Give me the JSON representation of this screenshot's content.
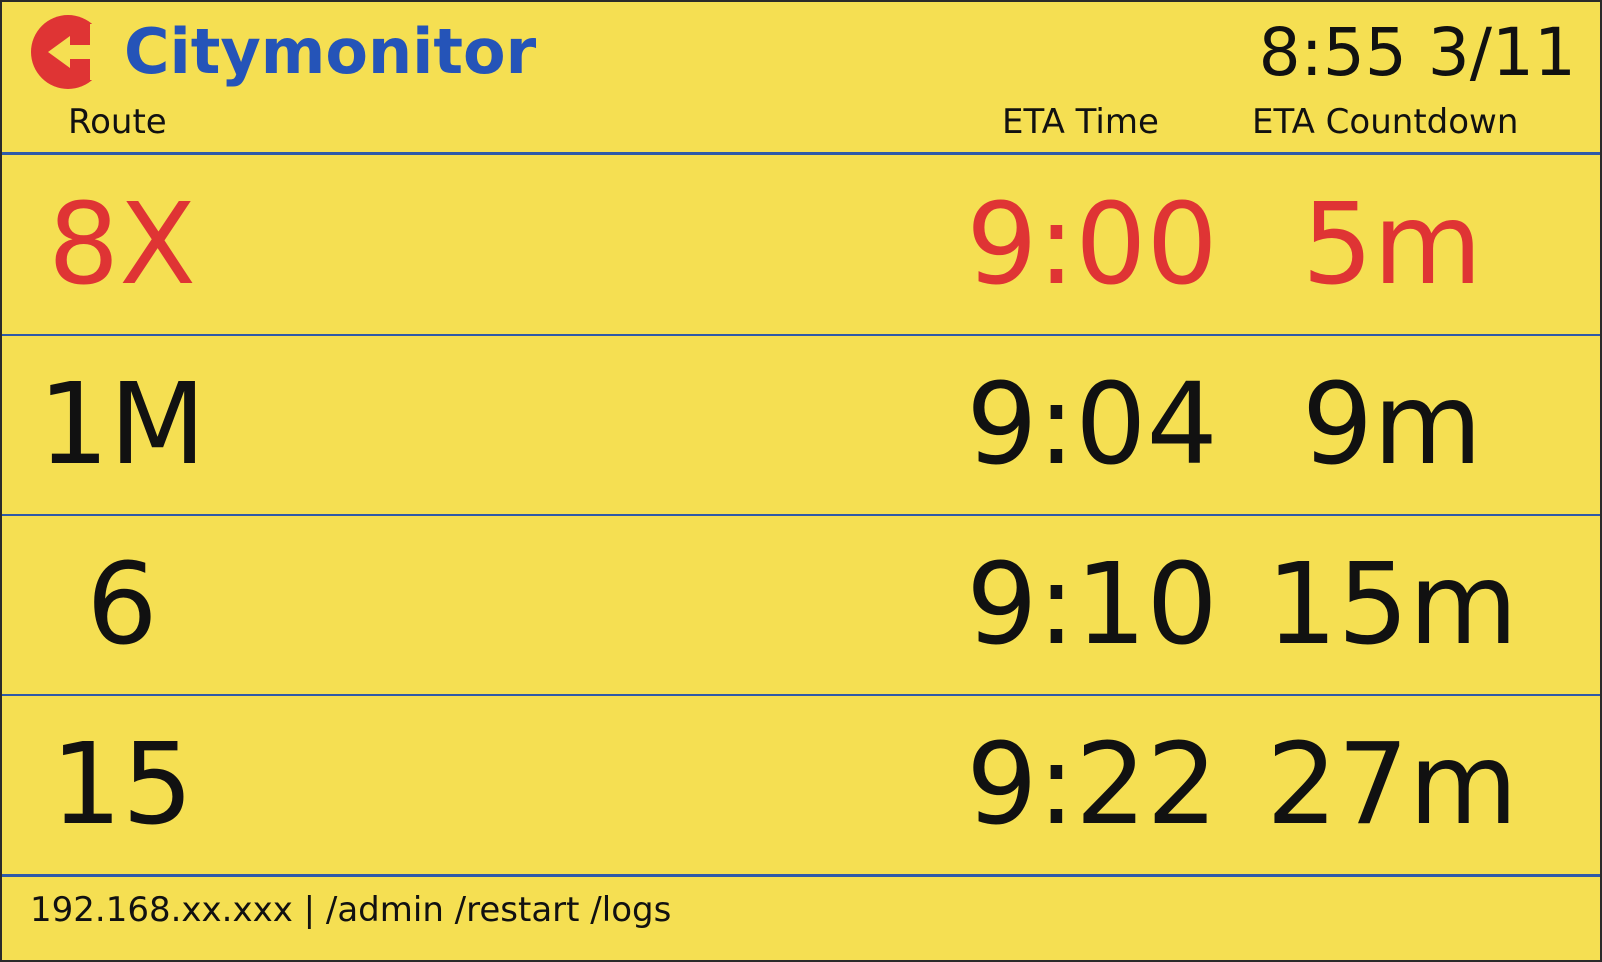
{
  "app": {
    "brand": "Citymonitor",
    "clock": "8:55 3/11"
  },
  "columns": {
    "route": "Route",
    "eta_time": "ETA Time",
    "eta_countdown": "ETA Countdown"
  },
  "arrivals": [
    {
      "route": "8X",
      "eta_time": "9:00",
      "eta_countdown": "5m",
      "highlight": true
    },
    {
      "route": "1M",
      "eta_time": "9:04",
      "eta_countdown": "9m",
      "highlight": false
    },
    {
      "route": "6",
      "eta_time": "9:10",
      "eta_countdown": "15m",
      "highlight": false
    },
    {
      "route": "15",
      "eta_time": "9:22",
      "eta_countdown": "27m",
      "highlight": false
    }
  ],
  "footer": {
    "text": "192.168.xx.xxx | /admin /restart /logs"
  },
  "colors": {
    "background": "#f5df52",
    "brand": "#2554b8",
    "highlight": "#df3434",
    "divider": "#2e5aa8",
    "text": "#111111"
  },
  "icons": {
    "logo": "citymonitor-logo-icon"
  }
}
